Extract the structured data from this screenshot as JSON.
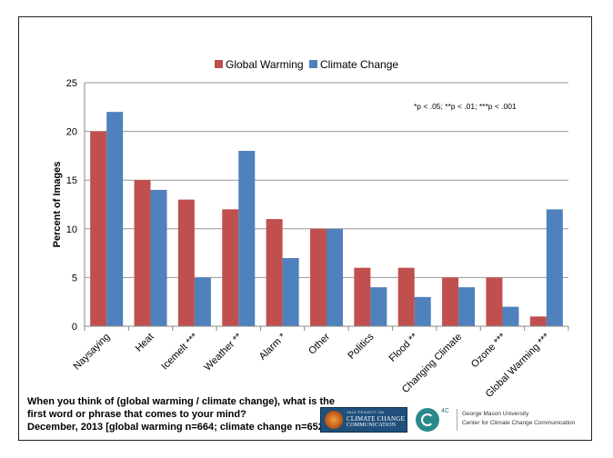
{
  "chart_data": {
    "type": "bar",
    "categories": [
      "Naysaying",
      "Heat",
      "Icemelt ***",
      "Weather **",
      "Alarm *",
      "Other",
      "Politics",
      "Flood **",
      "Changing Climate",
      "Ozone ***",
      "Global Warming ***"
    ],
    "series": [
      {
        "name": "Global Warming",
        "color": "#c0504d",
        "values": [
          20,
          15,
          13,
          12,
          11,
          10,
          6,
          6,
          5,
          5,
          1
        ]
      },
      {
        "name": "Climate Change",
        "color": "#4f81bd",
        "values": [
          22,
          14,
          5,
          18,
          7,
          10,
          4,
          3,
          4,
          2,
          12
        ]
      }
    ],
    "ylabel": "Percent of Images",
    "xlabel": "",
    "ylim": [
      0,
      25
    ],
    "yticks": [
      0,
      5,
      10,
      15,
      20,
      25
    ],
    "grid": true,
    "legend": "top-center",
    "significance_note": "*p < .05; **p < .01; ***p < .001"
  },
  "caption": {
    "line1": "When you think of (global warming / climate change), what is the",
    "line2": "first word or phrase that comes to your mind?",
    "line3": "December, 2013 [global warming n=664; climate change n=652]"
  },
  "logos": {
    "ycc_line1": "YALE PROJECT ON",
    "ycc_line2": "CLIMATE CHANGE",
    "ycc_line3": "COMMUNICATION",
    "fourc_label": "4C",
    "gmu_line1": "George Mason University",
    "gmu_line2": "Center for Climate Change Communication"
  }
}
